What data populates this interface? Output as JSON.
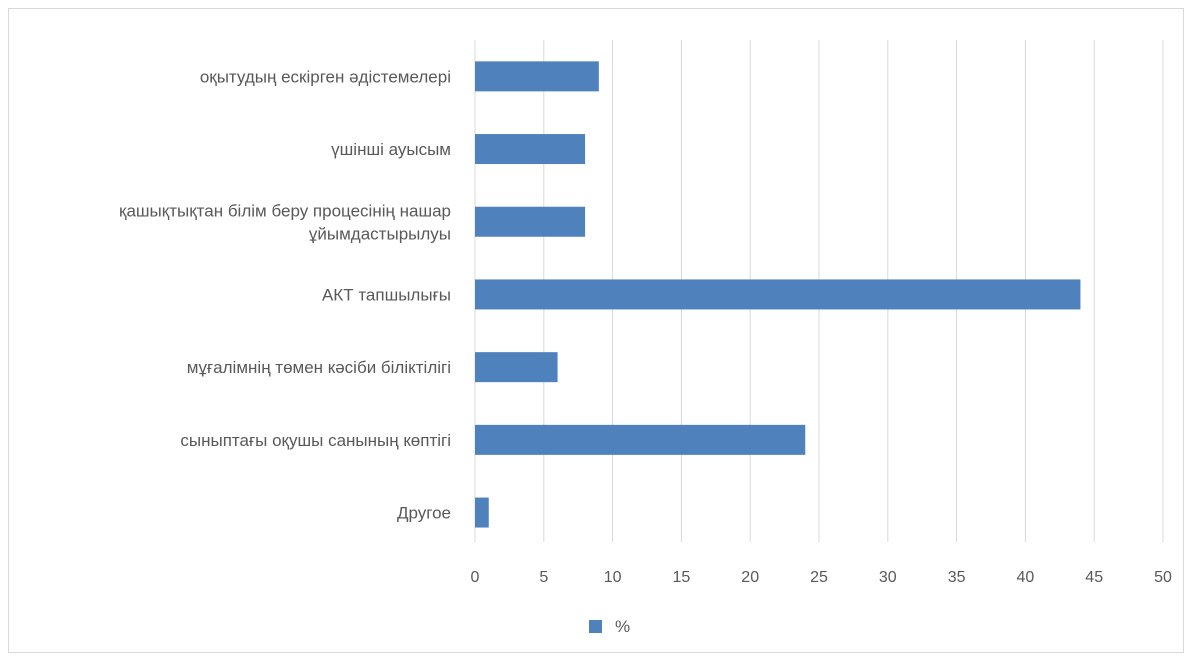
{
  "chart_data": {
    "type": "bar",
    "orientation": "horizontal",
    "categories": [
      [
        "оқытудың ескірген әдістемелері"
      ],
      [
        "үшінші ауысым"
      ],
      [
        "қашықтықтан білім беру процесінің нашар",
        "ұйымдастырылуы"
      ],
      [
        "АКТ тапшылығы"
      ],
      [
        "мұғалімнің төмен кәсіби біліктілігі"
      ],
      [
        "сыныптағы оқушы санының көптігі"
      ],
      [
        "Другое"
      ]
    ],
    "series": [
      {
        "name": "%",
        "values": [
          9,
          8,
          8,
          44,
          6,
          24,
          1
        ]
      }
    ],
    "xlim": [
      0,
      50
    ],
    "xticks": [
      "0",
      "5",
      "10",
      "15",
      "20",
      "25",
      "30",
      "35",
      "40",
      "45",
      "50"
    ],
    "grid": true,
    "legend_position": "bottom",
    "colors": {
      "bar": "#4f81bd",
      "grid": "#d9d9d9",
      "text": "#595959"
    }
  }
}
